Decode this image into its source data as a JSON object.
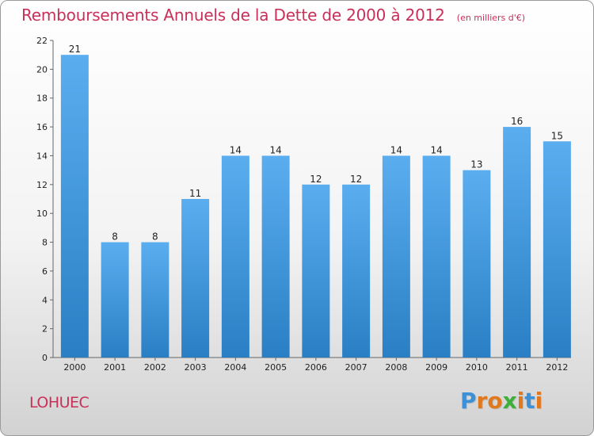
{
  "chart_data": {
    "type": "bar",
    "title": "Remboursements Annuels de la Dette de 2000 à 2012",
    "subtitle": "(en milliers d'€)",
    "categories": [
      "2000",
      "2001",
      "2002",
      "2003",
      "2004",
      "2005",
      "2006",
      "2007",
      "2008",
      "2009",
      "2010",
      "2011",
      "2012"
    ],
    "values": [
      21,
      8,
      8,
      11,
      14,
      14,
      12,
      12,
      14,
      14,
      13,
      16,
      15
    ],
    "ylim": [
      0,
      22
    ],
    "yticks": [
      0,
      2,
      4,
      6,
      8,
      10,
      12,
      14,
      16,
      18,
      20,
      22
    ],
    "xlabel": "",
    "ylabel": "",
    "grid": false,
    "legend": "none",
    "colors": {
      "bar_top": "#5aaef0",
      "bar_bottom": "#2a7fc4",
      "title": "#c8305a"
    }
  },
  "footer": {
    "commune": "LOHUEC",
    "logo_letters": [
      "P",
      "r",
      "o",
      "x",
      "i",
      "t",
      "i"
    ],
    "logo_colors": [
      "#3d8fd6",
      "#e0781e",
      "#e0781e",
      "#3fae3a",
      "#e0781e",
      "#3d8fd6",
      "#e0781e"
    ]
  }
}
